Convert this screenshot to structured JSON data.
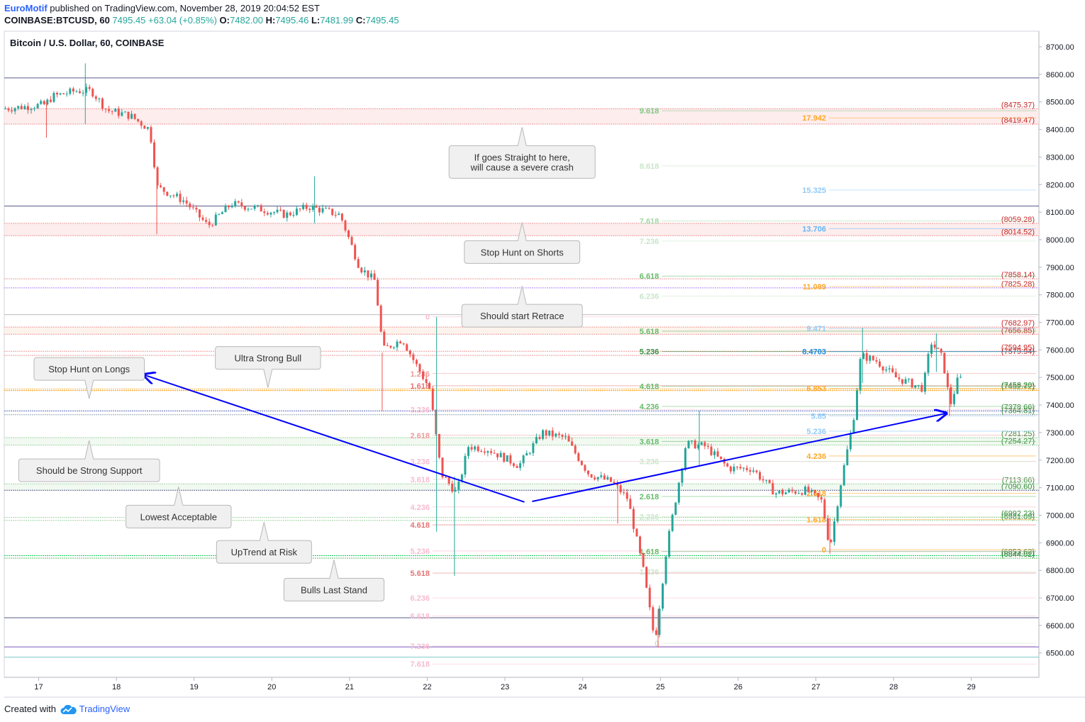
{
  "header": {
    "author": "EuroMotif",
    "published_text": "published on TradingView.com, November 28, 2019 20:04:52 EST",
    "symbol": "COINBASE:BTCUSD, 60",
    "last": "7495.45",
    "change": "+63.04 (+0.85%)",
    "o_label": "O:",
    "o_value": "7482.00",
    "h_label": "H:",
    "h_value": "7495.46",
    "l_label": "L:",
    "l_value": "7481.99",
    "c_label": "C:",
    "c_value": "7495.45"
  },
  "footer": {
    "created_with": "Created with",
    "brand": "TradingView"
  },
  "colors": {
    "up": "#26a69a",
    "down": "#ef5350",
    "trend": "#0000ff",
    "grid": "#e0e3eb"
  },
  "chart_data": {
    "type": "candlestick",
    "title": "Bitcoin / U.S. Dollar, 60, COINBASE",
    "ylim": [
      6430,
      8750
    ],
    "xlim": [
      16.55,
      29.9
    ],
    "y_ticks": [
      "8700.00",
      "8600.00",
      "8500.00",
      "8400.00",
      "8300.00",
      "8200.00",
      "8100.00",
      "8000.00",
      "7900.00",
      "7800.00",
      "7700.00",
      "7600.00",
      "7500.00",
      "7400.00",
      "7300.00",
      "7200.00",
      "7100.00",
      "7000.00",
      "6900.00",
      "6800.00",
      "6700.00",
      "6600.00",
      "6500.00"
    ],
    "x_ticks": [
      {
        "t": 17,
        "label": "17"
      },
      {
        "t": 18,
        "label": "18"
      },
      {
        "t": 19,
        "label": "19"
      },
      {
        "t": 20,
        "label": "20"
      },
      {
        "t": 21,
        "label": "21"
      },
      {
        "t": 22,
        "label": "22"
      },
      {
        "t": 23,
        "label": "23"
      },
      {
        "t": 24,
        "label": "24"
      },
      {
        "t": 25,
        "label": "25"
      },
      {
        "t": 26,
        "label": "26"
      },
      {
        "t": 27,
        "label": "27"
      },
      {
        "t": 28,
        "label": "28"
      },
      {
        "t": 29,
        "label": "29"
      }
    ],
    "price_path": [
      [
        16.55,
        8475
      ],
      [
        17.1,
        8490
      ],
      [
        17.2,
        8520
      ],
      [
        17.5,
        8540
      ],
      [
        17.7,
        8540
      ],
      [
        17.9,
        8470
      ],
      [
        18.2,
        8450
      ],
      [
        18.45,
        8400
      ],
      [
        18.55,
        8190
      ],
      [
        18.9,
        8140
      ],
      [
        19.2,
        8050
      ],
      [
        19.5,
        8130
      ],
      [
        19.9,
        8110
      ],
      [
        20.2,
        8090
      ],
      [
        20.5,
        8120
      ],
      [
        20.9,
        8090
      ],
      [
        21.15,
        7900
      ],
      [
        21.35,
        7850
      ],
      [
        21.45,
        7600
      ],
      [
        21.7,
        7640
      ],
      [
        21.85,
        7560
      ],
      [
        22.05,
        7460
      ],
      [
        22.2,
        7150
      ],
      [
        22.4,
        7080
      ],
      [
        22.55,
        7250
      ],
      [
        22.8,
        7240
      ],
      [
        23.2,
        7180
      ],
      [
        23.5,
        7300
      ],
      [
        23.8,
        7280
      ],
      [
        24.1,
        7150
      ],
      [
        24.4,
        7120
      ],
      [
        24.6,
        7060
      ],
      [
        24.8,
        6800
      ],
      [
        24.95,
        6540
      ],
      [
        25.1,
        6880
      ],
      [
        25.35,
        7260
      ],
      [
        25.6,
        7250
      ],
      [
        25.9,
        7170
      ],
      [
        26.2,
        7170
      ],
      [
        26.5,
        7080
      ],
      [
        26.9,
        7090
      ],
      [
        27.1,
        7050
      ],
      [
        27.2,
        6880
      ],
      [
        27.35,
        7130
      ],
      [
        27.5,
        7340
      ],
      [
        27.6,
        7580
      ],
      [
        27.8,
        7560
      ],
      [
        28.05,
        7500
      ],
      [
        28.4,
        7460
      ],
      [
        28.5,
        7630
      ],
      [
        28.65,
        7570
      ],
      [
        28.75,
        7400
      ],
      [
        28.85,
        7495
      ]
    ],
    "up_wicks": [
      [
        17.6,
        8420,
        8640
      ],
      [
        20.55,
        8060,
        8230
      ],
      [
        22.12,
        6940,
        7720
      ],
      [
        22.35,
        6780,
        7140
      ],
      [
        25.5,
        7180,
        7380
      ],
      [
        27.6,
        7480,
        7680
      ],
      [
        28.55,
        7520,
        7660
      ]
    ],
    "down_wicks": [
      [
        17.1,
        8370,
        8500
      ],
      [
        18.52,
        8020,
        8240
      ],
      [
        21.42,
        7380,
        7590
      ],
      [
        24.45,
        6970,
        7120
      ],
      [
        24.97,
        6520,
        6660
      ],
      [
        27.18,
        6860,
        6990
      ],
      [
        28.72,
        7360,
        7460
      ]
    ],
    "horizontal_levels": [
      {
        "price": 8587,
        "color": "#5b5b8a",
        "value_label": ""
      },
      {
        "price": 8475.37,
        "color": "#ef9a9a",
        "value_label": "(8475.37)",
        "label_color": "#c62828"
      },
      {
        "price": 8419.47,
        "color": "#ef9a9a",
        "value_label": "(8419.47)",
        "label_color": "#c62828"
      },
      {
        "price": 8122,
        "color": "#5b5b8a",
        "value_label": ""
      },
      {
        "price": 8059.28,
        "color": "#ef9a9a",
        "value_label": "(8059.28)",
        "label_color": "#c62828"
      },
      {
        "price": 8014.52,
        "color": "#ef9a9a",
        "value_label": "(8014.52)",
        "label_color": "#c62828"
      },
      {
        "price": 7858.14,
        "color": "#ef9a9a",
        "value_label": "(7858.14)",
        "label_color": "#c62828"
      },
      {
        "price": 7825.28,
        "color": "#b388ff",
        "value_label": "(7825.28)",
        "label_color": "#c62828"
      },
      {
        "price": 7728,
        "color": "#bdbdbd",
        "value_label": ""
      },
      {
        "price": 7682.97,
        "color": "#ef9a9a",
        "value_label": "(7682.97)",
        "label_color": "#c62828"
      },
      {
        "price": 7656.85,
        "color": "#ef9a9a",
        "value_label": "(7656.85)",
        "label_color": "#c62828"
      },
      {
        "price": 7594.95,
        "color": "#ef9a9a",
        "value_label": "(7594.95)",
        "label_color": "#c62828"
      },
      {
        "price": 7579.94,
        "color": "#ef9a9a",
        "value_label": "(7579.94)",
        "label_color": "#c62828"
      },
      {
        "price": 7458.2,
        "color": "#ffb74d",
        "value_label": "(7458.20)",
        "label_color": "#388e3c"
      },
      {
        "price": 7452.72,
        "color": "#ff9800",
        "value_label": "(7452.72)",
        "label_color": "#388e3c"
      },
      {
        "price": 7378.66,
        "color": "#5c6bc0",
        "value_label": "(7378.66)",
        "label_color": "#388e3c"
      },
      {
        "price": 7364.81,
        "color": "#90a4ae",
        "value_label": "(7364.81)",
        "label_color": "#388e3c"
      },
      {
        "price": 7281.25,
        "color": "#a5d6a7",
        "value_label": "(7281.25)",
        "label_color": "#388e3c"
      },
      {
        "price": 7254.27,
        "color": "#a5d6a7",
        "value_label": "(7254.27)",
        "label_color": "#388e3c"
      },
      {
        "price": 7113.66,
        "color": "#a5d6a7",
        "value_label": "(7113.66)",
        "label_color": "#388e3c"
      },
      {
        "price": 7090.6,
        "color": "#5b5b8a",
        "value_label": "(7090.60)",
        "label_color": "#388e3c"
      },
      {
        "price": 6992.23,
        "color": "#a5d6a7",
        "value_label": "(6992.23)",
        "label_color": "#388e3c"
      },
      {
        "price": 6981.09,
        "color": "#a5d6a7",
        "value_label": "(6981.09)",
        "label_color": "#388e3c"
      },
      {
        "price": 6853.62,
        "color": "#00c853",
        "value_label": "(6853.62)",
        "label_color": "#2e7d32"
      },
      {
        "price": 6844.02,
        "color": "#66bb6a",
        "value_label": "(6844.02)",
        "label_color": "#2e7d32"
      },
      {
        "price": 6628,
        "color": "#5b5b8a",
        "value_label": ""
      },
      {
        "price": 6522,
        "color": "#7e57c2",
        "value_label": ""
      },
      {
        "price": 6485,
        "color": "#80cbc4",
        "value_label": ""
      }
    ],
    "fib_labels": [
      {
        "x": 22.05,
        "price": 7720,
        "text": "0",
        "color": "#f8bbd0"
      },
      {
        "x": 22.05,
        "price": 7514,
        "text": "1.236",
        "color": "#ef9a9a"
      },
      {
        "x": 22.05,
        "price": 7470,
        "text": "1.618",
        "color": "#e57373"
      },
      {
        "x": 22.05,
        "price": 7384,
        "text": "2.236",
        "color": "#f8bbd0"
      },
      {
        "x": 22.05,
        "price": 7290,
        "text": "2.618",
        "color": "#ef9a9a"
      },
      {
        "x": 22.05,
        "price": 7195,
        "text": "3.236",
        "color": "#f8bbd0"
      },
      {
        "x": 22.05,
        "price": 7130,
        "text": "3.618",
        "color": "#f8bbd0"
      },
      {
        "x": 22.05,
        "price": 7030,
        "text": "4.236",
        "color": "#f8bbd0"
      },
      {
        "x": 22.05,
        "price": 6965,
        "text": "4.618",
        "color": "#e57373"
      },
      {
        "x": 22.05,
        "price": 6870,
        "text": "5.236",
        "color": "#f8bbd0"
      },
      {
        "x": 22.05,
        "price": 6790,
        "text": "5.618",
        "color": "#e57373"
      },
      {
        "x": 22.05,
        "price": 6700,
        "text": "6.236",
        "color": "#f8bbd0"
      },
      {
        "x": 22.05,
        "price": 6635,
        "text": "6.618",
        "color": "#f8bbd0"
      },
      {
        "x": 22.05,
        "price": 6525,
        "text": "7.236",
        "color": "#f8bbd0"
      },
      {
        "x": 22.05,
        "price": 6460,
        "text": "7.618",
        "color": "#f8bbd0"
      },
      {
        "x": 25.0,
        "price": 8468,
        "text": "9.618",
        "color": "#81c784"
      },
      {
        "x": 25.0,
        "price": 8268,
        "text": "8.618",
        "color": "#c8e6c9"
      },
      {
        "x": 25.0,
        "price": 8068,
        "text": "7.618",
        "color": "#a5d6a7"
      },
      {
        "x": 25.0,
        "price": 7995,
        "text": "7.236",
        "color": "#c8e6c9"
      },
      {
        "x": 25.0,
        "price": 7868,
        "text": "6.618",
        "color": "#66bb6a"
      },
      {
        "x": 25.0,
        "price": 7795,
        "text": "6.236",
        "color": "#c8e6c9"
      },
      {
        "x": 25.0,
        "price": 7668,
        "text": "5.618",
        "color": "#66bb6a"
      },
      {
        "x": 25.0,
        "price": 7594,
        "text": "5.236",
        "color": "#388e3c"
      },
      {
        "x": 25.0,
        "price": 7468,
        "text": "4.618",
        "color": "#66bb6a"
      },
      {
        "x": 25.0,
        "price": 7395,
        "text": "4.236",
        "color": "#66bb6a"
      },
      {
        "x": 25.0,
        "price": 7268,
        "text": "3.618",
        "color": "#66bb6a"
      },
      {
        "x": 25.0,
        "price": 7195,
        "text": "3.236",
        "color": "#c8e6c9"
      },
      {
        "x": 25.0,
        "price": 7068,
        "text": "2.618",
        "color": "#66bb6a"
      },
      {
        "x": 25.0,
        "price": 6995,
        "text": "2.236",
        "color": "#c8e6c9"
      },
      {
        "x": 25.0,
        "price": 6868,
        "text": "1.618",
        "color": "#66bb6a"
      },
      {
        "x": 25.0,
        "price": 6795,
        "text": "1.236",
        "color": "#c8e6c9"
      },
      {
        "x": 25.0,
        "price": 6535,
        "text": "0",
        "color": "#c8e6c9"
      },
      {
        "x": 27.15,
        "price": 8442,
        "text": "17.942",
        "color": "#ffa726"
      },
      {
        "x": 27.15,
        "price": 8180,
        "text": "15.325",
        "color": "#90caf9"
      },
      {
        "x": 27.15,
        "price": 8040,
        "text": "13.706",
        "color": "#64b5f6"
      },
      {
        "x": 27.15,
        "price": 7830,
        "text": "11.089",
        "color": "#ffa726"
      },
      {
        "x": 27.15,
        "price": 7678,
        "text": "9.471",
        "color": "#90caf9"
      },
      {
        "x": 27.15,
        "price": 7594,
        "text": "8.4703",
        "color": "#1e88e5"
      },
      {
        "x": 27.15,
        "price": 7460,
        "text": "6.853",
        "color": "#ffa726"
      },
      {
        "x": 27.15,
        "price": 7360,
        "text": "5.85",
        "color": "#90caf9"
      },
      {
        "x": 27.15,
        "price": 7305,
        "text": "5.236",
        "color": "#90caf9"
      },
      {
        "x": 27.15,
        "price": 7215,
        "text": "4.236",
        "color": "#ffa726"
      },
      {
        "x": 27.15,
        "price": 7080,
        "text": "2.618",
        "color": "#ffa726"
      },
      {
        "x": 27.15,
        "price": 6985,
        "text": "1.618",
        "color": "#ffa726"
      },
      {
        "x": 27.15,
        "price": 6875,
        "text": "0",
        "color": "#ffa726"
      }
    ],
    "trend_lines": [
      {
        "from": [
          18.35,
          7510
        ],
        "to": [
          23.25,
          7048
        ]
      },
      {
        "from": [
          23.35,
          7050
        ],
        "to": [
          28.68,
          7370
        ]
      }
    ],
    "callouts": [
      {
        "text": [
          "If goes Straight to here,",
          "will cause a severe crash"
        ],
        "x": 23.22,
        "price": 8282,
        "pointer": "up"
      },
      {
        "text": [
          "Stop Hunt on Shorts"
        ],
        "x": 23.22,
        "price": 7955,
        "pointer": "up"
      },
      {
        "text": [
          "Should start Retrace"
        ],
        "x": 23.22,
        "price": 7724,
        "pointer": "up"
      },
      {
        "text": [
          "Ultra Strong Bull"
        ],
        "x": 19.95,
        "price": 7571,
        "pointer": "down"
      },
      {
        "text": [
          "Stop Hunt on Longs"
        ],
        "x": 17.65,
        "price": 7531,
        "pointer": "down"
      },
      {
        "text": [
          "Should be Strong Support"
        ],
        "x": 17.65,
        "price": 7163,
        "pointer": "up"
      },
      {
        "text": [
          "Lowest Acceptable"
        ],
        "x": 18.8,
        "price": 6995,
        "pointer": "up"
      },
      {
        "text": [
          "UpTrend at Risk"
        ],
        "x": 19.9,
        "price": 6867,
        "pointer": "up"
      },
      {
        "text": [
          "Bulls Last Stand"
        ],
        "x": 20.8,
        "price": 6730,
        "pointer": "up"
      }
    ]
  }
}
